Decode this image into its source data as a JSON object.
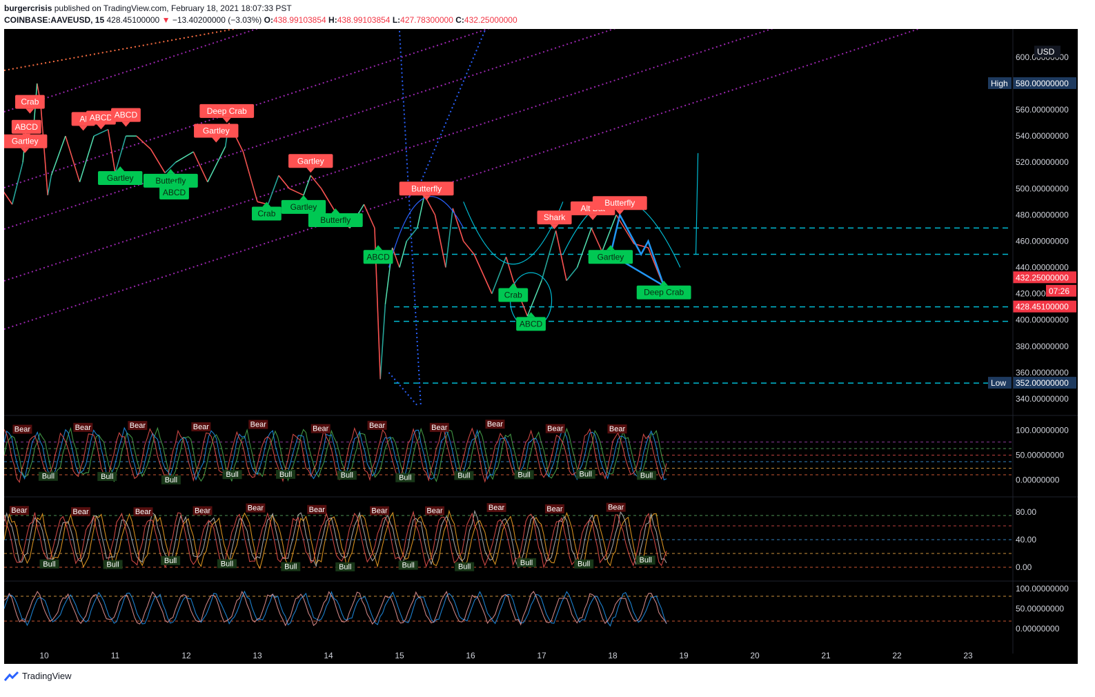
{
  "header": {
    "author": "burgercrisis",
    "published": "published on TradingView.com, February 18, 2021 18:07:33 PST",
    "symbol": "COINBASE:AAVEUSD, 15",
    "last": "428.45100000",
    "change_arrow": "▼",
    "change": "−13.40200000 (−3.03%)",
    "o_label": "O:",
    "o": "438.99103854",
    "h_label": "H:",
    "h": "438.99103854",
    "l_label": "L:",
    "l": "427.78300000",
    "c_label": "C:",
    "c": "432.25000000"
  },
  "colors": {
    "background": "#000000",
    "bull": "#26a69a",
    "bear": "#ef5350",
    "label_green": "#00c853",
    "label_red": "#ff5252",
    "cyan": "#00bcd4",
    "purple": "#9c27b0",
    "axis_text": "#d1d4dc",
    "blue_tag": "#1e3a5f"
  },
  "price_axis": {
    "currency": "USD",
    "ticks": [
      "600.00000000",
      "580.00000000",
      "560.00000000",
      "540.00000000",
      "520.00000000",
      "500.00000000",
      "480.00000000",
      "460.00000000",
      "440.00000000",
      "420.00000000",
      "400.00000000",
      "380.00000000",
      "360.00000000",
      "340.00000000"
    ],
    "high_label": "High",
    "high_value": "580.00000000",
    "low_label": "Low",
    "low_value": "352.00000000",
    "close_tag": "432.25000000",
    "countdown": "07:26",
    "last_tag": "428.45100000"
  },
  "osc1_axis": [
    "100.00000000",
    "50.00000000",
    "0.00000000"
  ],
  "osc2_axis": [
    "80.00",
    "40.00",
    "0.00"
  ],
  "osc3_axis": [
    "100.00000000",
    "50.00000000",
    "0.00000000"
  ],
  "time_axis": [
    "10",
    "11",
    "12",
    "13",
    "14",
    "15",
    "16",
    "17",
    "18",
    "19",
    "20",
    "21",
    "22",
    "23"
  ],
  "chart_data": {
    "type": "line",
    "title": "COINBASE:AAVEUSD, 15",
    "x_unit": "day (February 2021)",
    "ylim": [
      330,
      612
    ],
    "grid": false,
    "price_path": [
      [
        9.4,
        500
      ],
      [
        9.55,
        488
      ],
      [
        9.7,
        520
      ],
      [
        9.75,
        548
      ],
      [
        9.85,
        545
      ],
      [
        9.9,
        580
      ],
      [
        9.95,
        565
      ],
      [
        10.05,
        495
      ],
      [
        10.1,
        510
      ],
      [
        10.3,
        540
      ],
      [
        10.5,
        505
      ],
      [
        10.7,
        540
      ],
      [
        10.9,
        545
      ],
      [
        11.0,
        512
      ],
      [
        11.15,
        540
      ],
      [
        11.3,
        540
      ],
      [
        11.5,
        530
      ],
      [
        11.7,
        512
      ],
      [
        11.85,
        520
      ],
      [
        12.1,
        528
      ],
      [
        12.3,
        505
      ],
      [
        12.55,
        532
      ],
      [
        12.6,
        550
      ],
      [
        12.8,
        528
      ],
      [
        13.0,
        490
      ],
      [
        13.15,
        488
      ],
      [
        13.3,
        510
      ],
      [
        13.45,
        500
      ],
      [
        13.65,
        495
      ],
      [
        13.75,
        510
      ],
      [
        13.9,
        500
      ],
      [
        14.1,
        482
      ],
      [
        14.3,
        470
      ],
      [
        14.5,
        488
      ],
      [
        14.65,
        470
      ],
      [
        14.73,
        355
      ],
      [
        14.8,
        412
      ],
      [
        14.9,
        455
      ],
      [
        15.0,
        440
      ],
      [
        15.1,
        460
      ],
      [
        15.25,
        470
      ],
      [
        15.35,
        495
      ],
      [
        15.5,
        480
      ],
      [
        15.65,
        440
      ],
      [
        15.75,
        485
      ],
      [
        15.9,
        460
      ],
      [
        16.05,
        450
      ],
      [
        16.3,
        420
      ],
      [
        16.5,
        448
      ],
      [
        16.6,
        430
      ],
      [
        16.8,
        403
      ],
      [
        17.0,
        430
      ],
      [
        17.2,
        468
      ],
      [
        17.35,
        430
      ],
      [
        17.5,
        440
      ],
      [
        17.7,
        470
      ],
      [
        17.85,
        452
      ],
      [
        18.05,
        480
      ],
      [
        18.3,
        458
      ],
      [
        18.5,
        455
      ],
      [
        18.7,
        428
      ]
    ],
    "patterns_bearish": [
      {
        "name": "Crab",
        "x": 9.8,
        "y": 566
      },
      {
        "name": "ABCD",
        "x": 9.75,
        "y": 547
      },
      {
        "name": "Gartley",
        "x": 9.73,
        "y": 536
      },
      {
        "name": "Al",
        "x": 10.55,
        "y": 553
      },
      {
        "name": "ABCD",
        "x": 10.8,
        "y": 554
      },
      {
        "name": "ABCD",
        "x": 11.15,
        "y": 556
      },
      {
        "name": "Deep Crab",
        "x": 12.57,
        "y": 559
      },
      {
        "name": "Gartley",
        "x": 12.42,
        "y": 544
      },
      {
        "name": "Gartley",
        "x": 13.75,
        "y": 521
      },
      {
        "name": "Butterfly",
        "x": 15.38,
        "y": 500
      },
      {
        "name": "Shark",
        "x": 17.18,
        "y": 478
      },
      {
        "name": "Alt Bat",
        "x": 17.72,
        "y": 485
      },
      {
        "name": "Butterfly",
        "x": 18.1,
        "y": 489
      }
    ],
    "patterns_bullish": [
      {
        "name": "Gartley",
        "x": 11.07,
        "y": 508
      },
      {
        "name": "Butterfly",
        "x": 11.78,
        "y": 506
      },
      {
        "name": "ABCD",
        "x": 11.83,
        "y": 497
      },
      {
        "name": "Crab",
        "x": 13.13,
        "y": 481
      },
      {
        "name": "Gartley",
        "x": 13.65,
        "y": 486
      },
      {
        "name": "Butterfly",
        "x": 14.1,
        "y": 476
      },
      {
        "name": "ABCD",
        "x": 14.7,
        "y": 448
      },
      {
        "name": "Crab",
        "x": 16.6,
        "y": 419
      },
      {
        "name": "ABCD",
        "x": 16.85,
        "y": 397
      },
      {
        "name": "Gartley",
        "x": 17.97,
        "y": 448
      },
      {
        "name": "Deep Crab",
        "x": 18.72,
        "y": 421
      }
    ],
    "horizontal_levels": [
      470,
      450,
      410,
      399,
      352
    ],
    "oscillators": [
      {
        "ylim": [
          -10,
          115
        ],
        "signal_words": [
          "Bear",
          "Bull"
        ]
      },
      {
        "ylim": [
          -10,
          100
        ],
        "signal_words": [
          "Bear",
          "Bull"
        ]
      },
      {
        "ylim": [
          -10,
          110
        ]
      }
    ]
  }
}
